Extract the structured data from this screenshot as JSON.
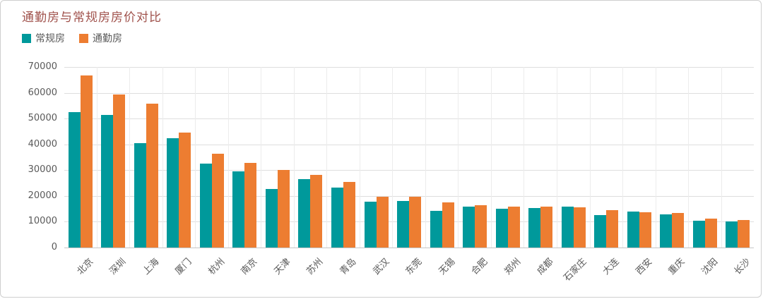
{
  "chart_data": {
    "type": "bar",
    "title": "通勤房与常规房房价对比",
    "xlabel": "",
    "ylabel": "",
    "ylim": [
      0,
      70000
    ],
    "ytick_step": 10000,
    "yticks": [
      "0",
      "10000",
      "20000",
      "30000",
      "40000",
      "50000",
      "60000",
      "70000"
    ],
    "grid": true,
    "legend_position": "top-left",
    "categories": [
      "北京",
      "深圳",
      "上海",
      "厦门",
      "杭州",
      "南京",
      "天津",
      "苏州",
      "青岛",
      "武汉",
      "东莞",
      "无锡",
      "合肥",
      "郑州",
      "成都",
      "石家庄",
      "大连",
      "西安",
      "重庆",
      "沈阳",
      "长沙"
    ],
    "series": [
      {
        "key": "regular",
        "name": "常规房",
        "color": "#00999b",
        "values": [
          52500,
          51500,
          40400,
          42300,
          32600,
          29400,
          22800,
          26400,
          23200,
          17800,
          18000,
          14100,
          15800,
          15000,
          15400,
          15800,
          12500,
          13900,
          12900,
          10500,
          10000
        ]
      },
      {
        "key": "commute",
        "name": "通勤房",
        "color": "#ed7d31",
        "values": [
          66600,
          59300,
          55700,
          44500,
          36500,
          32900,
          30000,
          28100,
          25300,
          19700,
          19700,
          17400,
          16400,
          15800,
          15900,
          15500,
          14600,
          13600,
          13400,
          11300,
          10800
        ]
      }
    ],
    "colors": {
      "title": "#a0524c",
      "axis_text": "#595959",
      "gridline": "#dedede",
      "axis_line": "#c6c6c6",
      "separator": "#ececec",
      "card_border": "#cfcfcf"
    }
  }
}
